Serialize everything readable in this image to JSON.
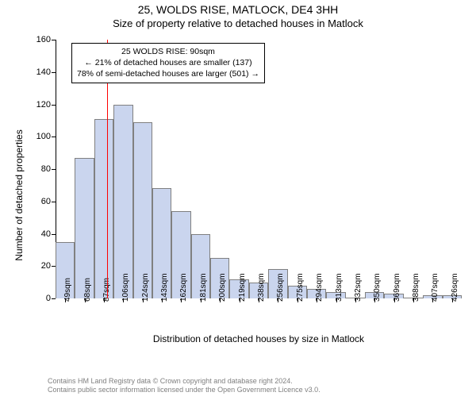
{
  "title": "25, WOLDS RISE, MATLOCK, DE4 3HH",
  "subtitle": "Size of property relative to detached houses in Matlock",
  "ylabel": "Number of detached properties",
  "xlabel": "Distribution of detached houses by size in Matlock",
  "copyright_line1": "Contains HM Land Registry data © Crown copyright and database right 2024.",
  "copyright_line2": "Contains public sector information licensed under the Open Government Licence v3.0.",
  "info_box": {
    "line1": "25 WOLDS RISE: 90sqm",
    "line2": "← 21% of detached houses are smaller (137)",
    "line3": "78% of semi-detached houses are larger (501) →"
  },
  "chart": {
    "type": "histogram",
    "ylim": [
      0,
      160
    ],
    "ytick_step": 20,
    "bar_fill": "#cad5ee",
    "bar_stroke": "#808080",
    "refline_color": "#ff0000",
    "refline_value": 90,
    "x_start": 40,
    "x_bin_width": 18.78,
    "x_tick_labels": [
      "49sqm",
      "68sqm",
      "87sqm",
      "106sqm",
      "124sqm",
      "143sqm",
      "162sqm",
      "181sqm",
      "200sqm",
      "219sqm",
      "238sqm",
      "256sqm",
      "275sqm",
      "294sqm",
      "313sqm",
      "332sqm",
      "350sqm",
      "369sqm",
      "388sqm",
      "407sqm",
      "426sqm"
    ],
    "bar_values": [
      35,
      87,
      111,
      120,
      109,
      68,
      54,
      40,
      25,
      12,
      10,
      18,
      8,
      6,
      4,
      0,
      4,
      3,
      0,
      2,
      2
    ],
    "background_color": "#ffffff",
    "axis_color": "#000000",
    "label_fontsize": 12,
    "tick_fontsize": 11
  }
}
